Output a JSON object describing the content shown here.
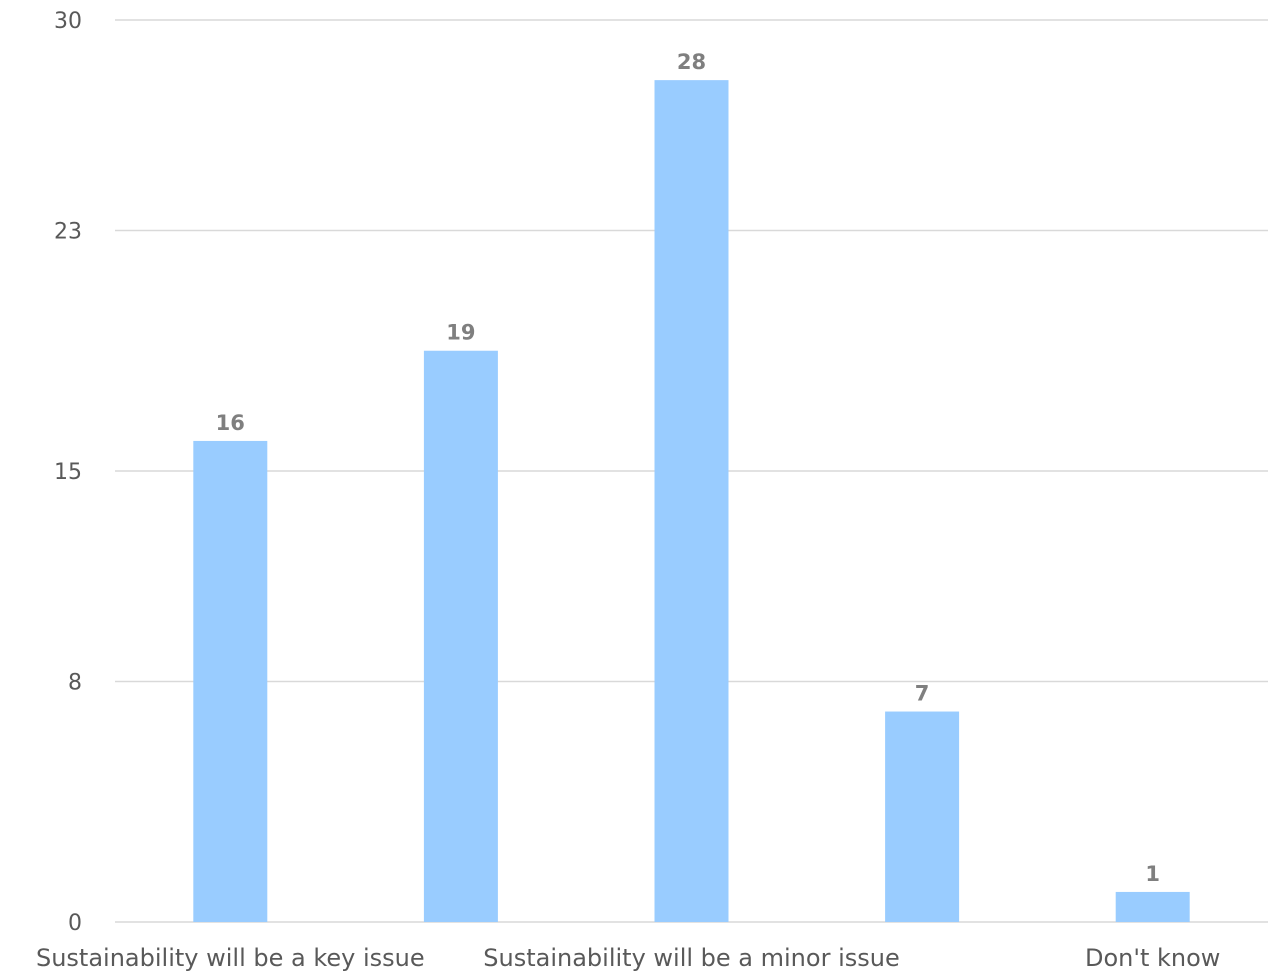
{
  "chart_data": {
    "type": "bar",
    "categories": [
      "Sustainability will be a key issue",
      "",
      "Sustainability will be a minor issue",
      "",
      "Don't know"
    ],
    "values": [
      16,
      19,
      28,
      7,
      1
    ],
    "data_labels": [
      "16",
      "19",
      "28",
      "7",
      "1"
    ],
    "yticks": [
      0,
      8,
      15,
      23,
      30
    ],
    "ytick_labels": [
      "0",
      "8",
      "15",
      "23",
      "30"
    ],
    "ylim": [
      0,
      30
    ],
    "title": "",
    "xlabel": "",
    "ylabel": "",
    "grid": true,
    "legend": "none",
    "colors": {
      "bar": "#99ccff",
      "grid": "#d9d9d9",
      "tick_text": "#595959",
      "data_label": "#7f7f7f"
    }
  }
}
